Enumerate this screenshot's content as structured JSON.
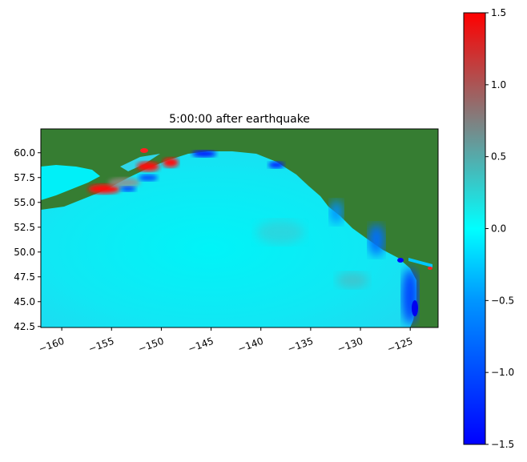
{
  "chart_data": {
    "type": "heatmap",
    "title": "5:00:00 after earthquake",
    "xlabel": "",
    "ylabel": "",
    "xlim": [
      -162.1,
      -122.2
    ],
    "ylim": [
      42.4,
      62.4
    ],
    "x_ticks": [
      -160,
      -155,
      -150,
      -145,
      -140,
      -135,
      -130,
      -125
    ],
    "x_tick_labels": [
      "−160",
      "−155",
      "−150",
      "−145",
      "−140",
      "−135",
      "−130",
      "−125"
    ],
    "y_ticks": [
      60.0,
      57.5,
      55.0,
      52.5,
      50.0,
      47.5,
      45.0,
      42.5
    ],
    "y_tick_labels": [
      "60.0",
      "57.5",
      "55.0",
      "52.5",
      "50.0",
      "47.5",
      "45.0",
      "42.5"
    ],
    "grid": false,
    "land_color": "#367d32",
    "colorbar": {
      "range": [
        -1.5,
        1.5
      ],
      "ticks": [
        1.5,
        1.0,
        0.5,
        0.0,
        -0.5,
        -1.0,
        -1.5
      ],
      "tick_labels": [
        "1.5",
        "1.0",
        "0.5",
        "0.0",
        "−0.5",
        "−1.0",
        "−1.5"
      ],
      "colormap_stops": [
        {
          "value": -1.5,
          "color": "#0000ff"
        },
        {
          "value": -0.5,
          "color": "#0096ff"
        },
        {
          "value": 0.0,
          "color": "#00ffff"
        },
        {
          "value": 0.75,
          "color": "#808080"
        },
        {
          "value": 1.5,
          "color": "#ff0000"
        }
      ]
    }
  }
}
